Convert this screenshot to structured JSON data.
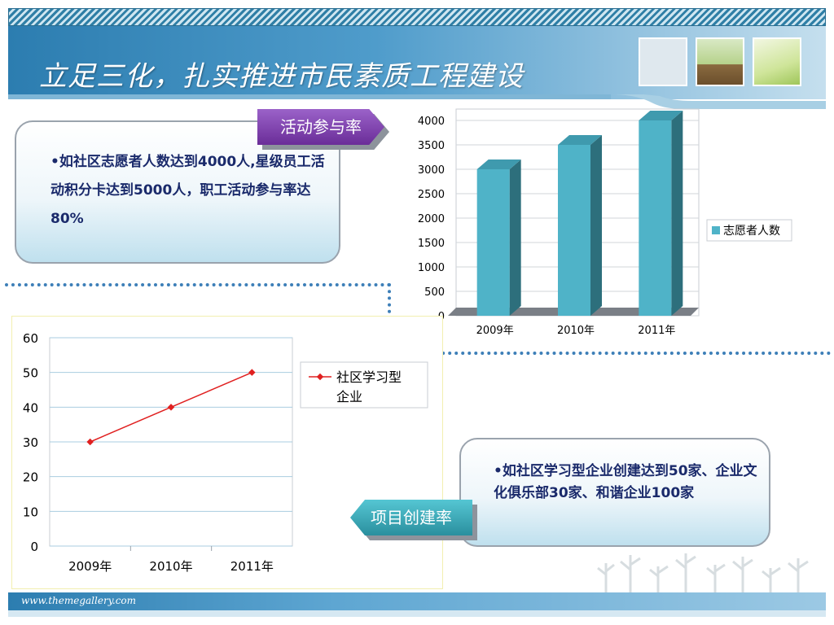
{
  "header": {
    "title": "立足三化，扎实推进市民素质工程建设"
  },
  "tags": {
    "participation": "活动参与率",
    "creation": "项目创建率"
  },
  "cards": {
    "participation_text": "•如社区志愿者人数达到4000人,星级员工活动积分卡达到5000人，职工活动参与率达80%",
    "creation_text": "•如社区学习型企业创建达到50家、企业文化俱乐部30家、和谐企业100家"
  },
  "footer": {
    "url": "www.themegallery.com"
  },
  "colors": {
    "bar": "#4fb3c8",
    "bar_side": "#2d6f7c",
    "line": "#e02020",
    "header": "#2c7db0",
    "text": "#1a2a6b"
  },
  "chart_data": [
    {
      "type": "bar",
      "categories": [
        "2009年",
        "2010年",
        "2011年"
      ],
      "series": [
        {
          "name": "志愿者人数",
          "values": [
            3000,
            3500,
            4000
          ]
        }
      ],
      "ylim": [
        0,
        4000
      ],
      "yticks": [
        0,
        500,
        1000,
        1500,
        2000,
        2500,
        3000,
        3500,
        4000
      ],
      "grid": true,
      "legend": "right"
    },
    {
      "type": "line",
      "categories": [
        "2009年",
        "2010年",
        "2011年"
      ],
      "series": [
        {
          "name": "社区学习型企业",
          "values": [
            30,
            40,
            50
          ]
        }
      ],
      "ylim": [
        0,
        60
      ],
      "yticks": [
        0,
        10,
        20,
        30,
        40,
        50,
        60
      ],
      "grid": true,
      "legend": "right"
    }
  ]
}
